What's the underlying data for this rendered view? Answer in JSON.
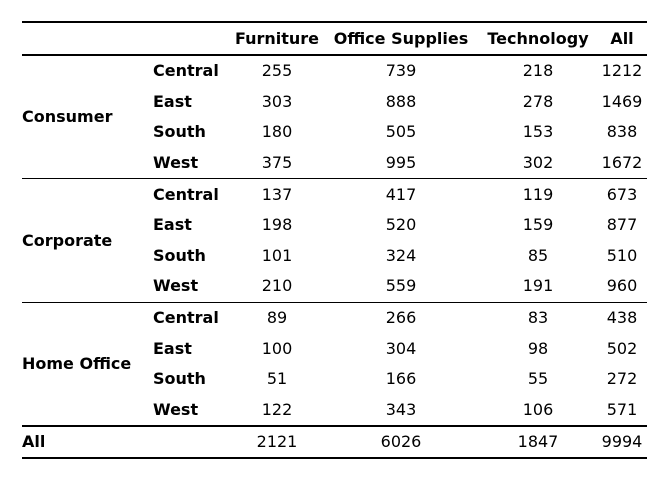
{
  "table": {
    "columns": [
      "Furniture",
      "Office Supplies",
      "Technology",
      "All"
    ],
    "groups": [
      {
        "segment": "Consumer",
        "rows": [
          {
            "region": "Central",
            "values": [
              "255",
              "739",
              "218",
              "1212"
            ]
          },
          {
            "region": "East",
            "values": [
              "303",
              "888",
              "278",
              "1469"
            ]
          },
          {
            "region": "South",
            "values": [
              "180",
              "505",
              "153",
              "838"
            ]
          },
          {
            "region": "West",
            "values": [
              "375",
              "995",
              "302",
              "1672"
            ]
          }
        ]
      },
      {
        "segment": "Corporate",
        "rows": [
          {
            "region": "Central",
            "values": [
              "137",
              "417",
              "119",
              "673"
            ]
          },
          {
            "region": "East",
            "values": [
              "198",
              "520",
              "159",
              "877"
            ]
          },
          {
            "region": "South",
            "values": [
              "101",
              "324",
              "85",
              "510"
            ]
          },
          {
            "region": "West",
            "values": [
              "210",
              "559",
              "191",
              "960"
            ]
          }
        ]
      },
      {
        "segment": "Home Office",
        "rows": [
          {
            "region": "Central",
            "values": [
              "89",
              "266",
              "83",
              "438"
            ]
          },
          {
            "region": "East",
            "values": [
              "100",
              "304",
              "98",
              "502"
            ]
          },
          {
            "region": "South",
            "values": [
              "51",
              "166",
              "55",
              "272"
            ]
          },
          {
            "region": "West",
            "values": [
              "122",
              "343",
              "106",
              "571"
            ]
          }
        ]
      }
    ],
    "total": {
      "label": "All",
      "values": [
        "2121",
        "6026",
        "1847",
        "9994"
      ]
    }
  }
}
